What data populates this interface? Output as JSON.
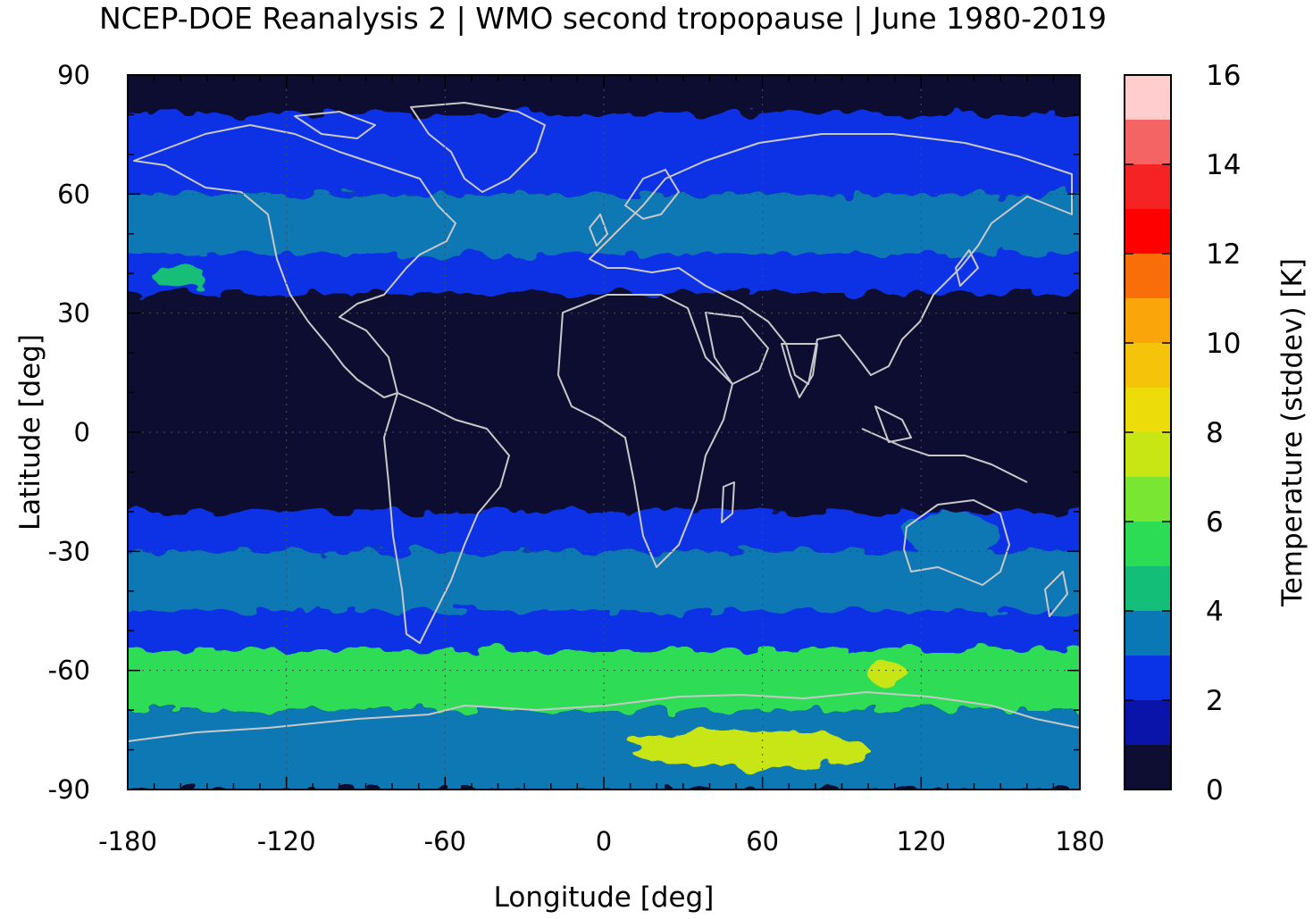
{
  "chart_data": {
    "type": "heatmap",
    "title": "NCEP-DOE Reanalysis 2 | WMO second tropopause | June 1980-2019",
    "xlabel": "Longitude [deg]",
    "ylabel": "Latitude [deg]",
    "colorbar_label": "Temperature (stddev) [K]",
    "xlim": [
      -180,
      180
    ],
    "ylim": [
      -90,
      90
    ],
    "xticks": [
      "-180",
      "-120",
      "-60",
      "0",
      "60",
      "120",
      "180"
    ],
    "yticks": [
      "-90",
      "-60",
      "-30",
      "0",
      "30",
      "60",
      "90"
    ],
    "colorbar_ticks": [
      "0",
      "2",
      "4",
      "6",
      "8",
      "10",
      "12",
      "14",
      "16"
    ],
    "colorbar_range": [
      0,
      16
    ],
    "grid": true,
    "coastlines_color": "#c8c8c8",
    "colorbar_levels": [
      {
        "from": 0,
        "to": 1,
        "color": "#0e0e32"
      },
      {
        "from": 1,
        "to": 2,
        "color": "#0a14aa"
      },
      {
        "from": 2,
        "to": 3,
        "color": "#0a32e6"
      },
      {
        "from": 3,
        "to": 4,
        "color": "#0a78b4"
      },
      {
        "from": 4,
        "to": 5,
        "color": "#12be78"
      },
      {
        "from": 5,
        "to": 6,
        "color": "#2ddc55"
      },
      {
        "from": 6,
        "to": 7,
        "color": "#78e632"
      },
      {
        "from": 7,
        "to": 8,
        "color": "#c8e614"
      },
      {
        "from": 8,
        "to": 9,
        "color": "#ebdc0a"
      },
      {
        "from": 9,
        "to": 10,
        "color": "#f5c30a"
      },
      {
        "from": 10,
        "to": 11,
        "color": "#faa50a"
      },
      {
        "from": 11,
        "to": 12,
        "color": "#fa6e0a"
      },
      {
        "from": 12,
        "to": 13,
        "color": "#ff0000"
      },
      {
        "from": 13,
        "to": 14,
        "color": "#f52323"
      },
      {
        "from": 14,
        "to": 15,
        "color": "#f56464"
      },
      {
        "from": 15,
        "to": 16,
        "color": "#ffcdcd"
      }
    ],
    "lat_bands_approx": [
      {
        "lat": [
          80,
          90
        ],
        "value": 0.5
      },
      {
        "lat": [
          60,
          80
        ],
        "value": 2.5
      },
      {
        "lat": [
          45,
          60
        ],
        "value": 3.5
      },
      {
        "lat": [
          35,
          45
        ],
        "value": 2.5
      },
      {
        "lat": [
          -20,
          30
        ],
        "value": 0.5
      },
      {
        "lat": [
          -30,
          -20
        ],
        "value": 2.5
      },
      {
        "lat": [
          -45,
          -30
        ],
        "value": 3.5
      },
      {
        "lat": [
          -55,
          -45
        ],
        "value": 2.5
      },
      {
        "lat": [
          -70,
          -55
        ],
        "value": 5.5
      },
      {
        "lat": [
          -90,
          -70
        ],
        "value": 3.5
      }
    ],
    "features_approx": [
      {
        "name": "Antarctic maximum",
        "lon": [
          10,
          100
        ],
        "lat": [
          -85,
          -75
        ],
        "value": 7.8
      },
      {
        "name": "South Pacific band",
        "lon": [
          -170,
          -60
        ],
        "lat": [
          -70,
          -58
        ],
        "value": 5.6
      },
      {
        "name": "North Pacific patch",
        "lon": [
          -170,
          -150
        ],
        "lat": [
          36,
          42
        ],
        "value": 4.5
      },
      {
        "name": "Australia patch",
        "lon": [
          115,
          150
        ],
        "lat": [
          -32,
          -20
        ],
        "value": 3.5
      },
      {
        "name": "Southern Ocean patch",
        "lon": [
          100,
          115
        ],
        "lat": [
          -64,
          -58
        ],
        "value": 7.5
      }
    ]
  }
}
